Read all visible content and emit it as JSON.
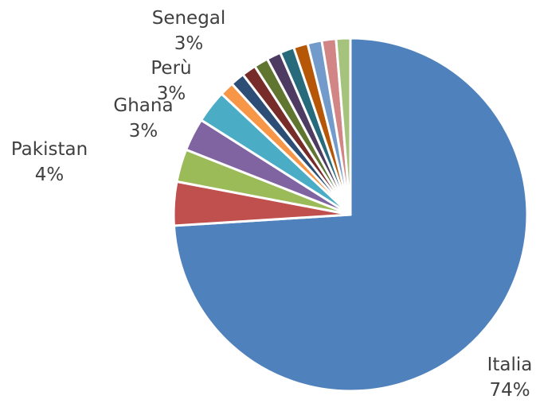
{
  "chart_data": {
    "type": "pie",
    "categories": [
      "Italia",
      "Pakistan",
      "Ghana",
      "Perù",
      "Senegal",
      null,
      null,
      null,
      null,
      null,
      null,
      null,
      null,
      null,
      null
    ],
    "values": [
      74,
      4,
      3,
      3,
      3,
      1.3,
      1.3,
      1.3,
      1.3,
      1.3,
      1.3,
      1.3,
      1.3,
      1.3,
      1.3
    ],
    "value_labels": [
      "74%",
      "4%",
      "3%",
      "3%",
      "3%",
      null,
      null,
      null,
      null,
      null,
      null,
      null,
      null,
      null,
      null
    ],
    "colors": [
      "#4f81bd",
      "#c0504d",
      "#9bbb59",
      "#8064a2",
      "#4bacc6",
      "#f79646",
      "#2c4d75",
      "#772c2a",
      "#5f7530",
      "#4d3b62",
      "#276a7c",
      "#b65708",
      "#729aca",
      "#d18584",
      "#a5c37c"
    ]
  }
}
